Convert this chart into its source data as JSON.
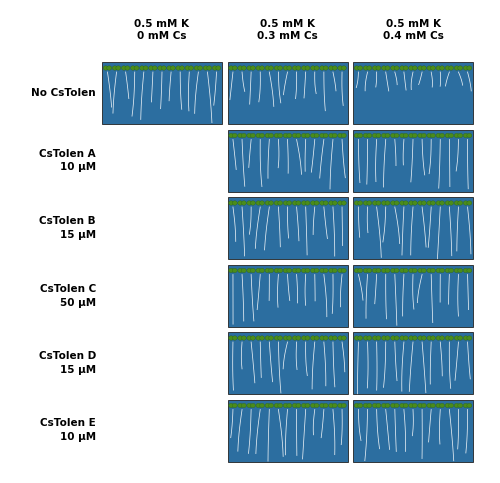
{
  "col_headers": [
    "0.5 mM K\n0 mM Cs",
    "0.5 mM K\n0.3 mM Cs",
    "0.5 mM K\n0.4 mM Cs"
  ],
  "row_labels": [
    [
      "No CsTolen",
      ""
    ],
    [
      "CsTolen A",
      "10 μM"
    ],
    [
      "CsTolen B",
      "15 μM"
    ],
    [
      "CsTolen C",
      "50 μM"
    ],
    [
      "CsTolen D",
      "15 μM"
    ],
    [
      "CsTolen E",
      "10 μM"
    ]
  ],
  "grid": [
    [
      true,
      true,
      true
    ],
    [
      false,
      true,
      true
    ],
    [
      false,
      true,
      true
    ],
    [
      false,
      true,
      true
    ],
    [
      false,
      true,
      true
    ],
    [
      false,
      true,
      true
    ]
  ],
  "bg_color": "#ffffff",
  "panel_bg": "#2c6ea0",
  "header_fontsize": 7.5,
  "label_fontsize": 7.5,
  "fig_width": 5.0,
  "fig_height": 4.83
}
